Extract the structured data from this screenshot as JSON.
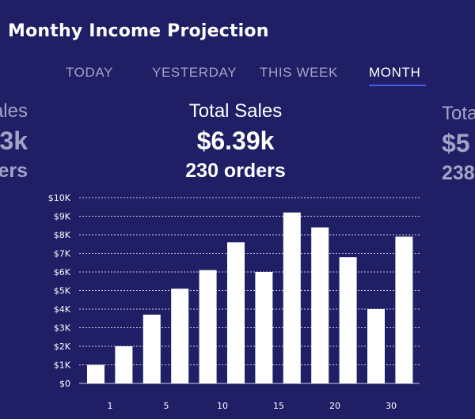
{
  "header": {
    "title": "Monthy Income Projection"
  },
  "tabs": [
    {
      "label": "TODAY",
      "active": false
    },
    {
      "label": "YESTERDAY",
      "active": false
    },
    {
      "label": "THIS WEEK",
      "active": false
    },
    {
      "label": "MONTH",
      "active": true
    }
  ],
  "summary": {
    "previous": {
      "label": "Sales",
      "amount": "3k",
      "orders": "ders"
    },
    "current": {
      "label": "Total Sales",
      "amount": "$6.39k",
      "orders": "230 orders"
    },
    "next": {
      "label": "Tota",
      "amount": "$5",
      "orders": "238"
    }
  },
  "colors": {
    "background": "#201f66",
    "accent": "#4a5ce8",
    "inactive_text": "#a3a3c7",
    "bar": "#ffffff"
  },
  "chart_data": {
    "type": "bar",
    "y_tick_labels": [
      "$0",
      "$1K",
      "$2K",
      "$3K",
      "$4K",
      "$5K",
      "$6K",
      "$7K",
      "$8K",
      "$9K",
      "$10K"
    ],
    "x_tick_labels": [
      "1",
      "5",
      "10",
      "15",
      "20",
      "30"
    ],
    "ylim": [
      0,
      10000
    ],
    "grid": true,
    "values": [
      1000,
      2000,
      3700,
      5100,
      6100,
      7600,
      6000,
      9200,
      8400,
      6800,
      4000,
      7900
    ]
  }
}
